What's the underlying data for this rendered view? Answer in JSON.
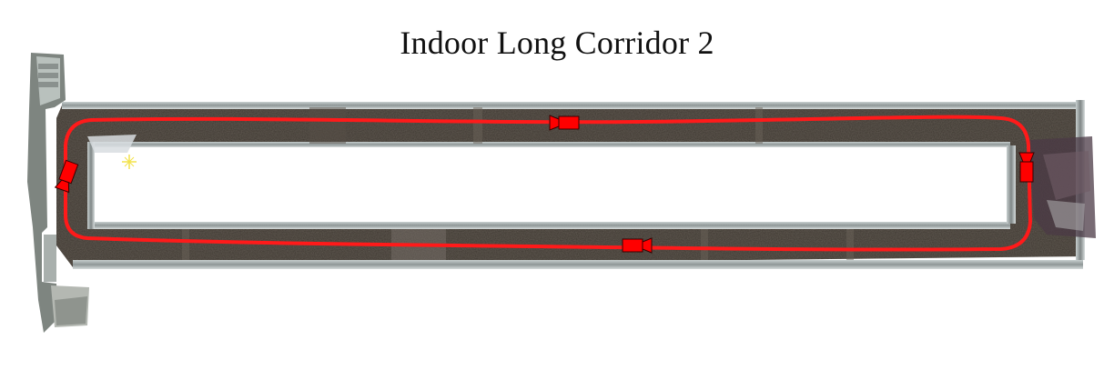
{
  "figure": {
    "title": "Indoor Long Corridor 2"
  },
  "colors": {
    "trajectory": "#ff1a1a",
    "camera_fill": "#ff0000",
    "camera_stroke": "#3a0000",
    "floor": "#3b352f",
    "wall": "#9aa3a3",
    "background": "#ffffff"
  },
  "markers": {
    "camera_icon": "video-camera-icon",
    "origin_icon": "start-star-icon"
  }
}
